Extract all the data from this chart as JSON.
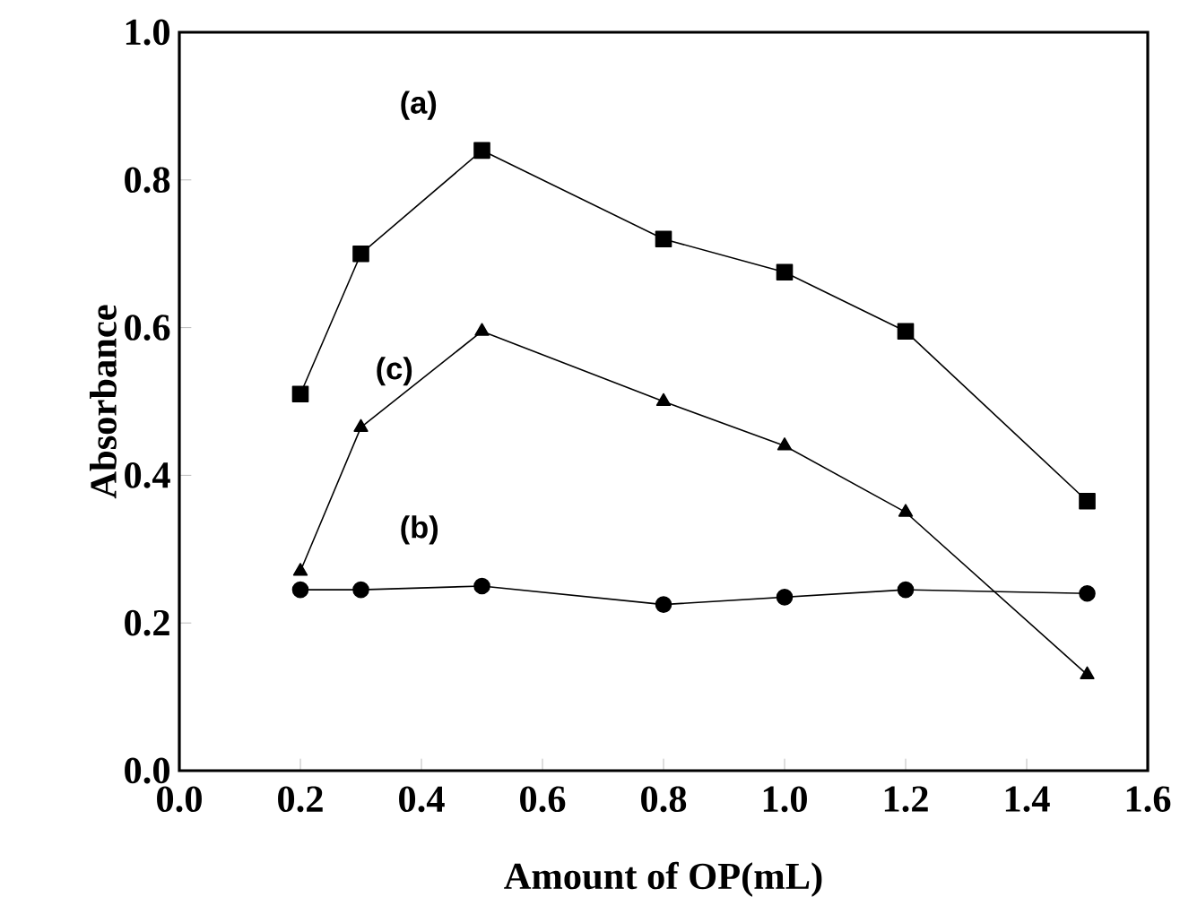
{
  "chart_data": {
    "type": "line",
    "xlabel": "Amount of OP(mL)",
    "ylabel": "Absorbance",
    "x": [
      0.2,
      0.3,
      0.5,
      0.8,
      1.0,
      1.2,
      1.5
    ],
    "series": [
      {
        "name": "(a)",
        "color": "#000000",
        "marker": "square",
        "values": [
          0.51,
          0.7,
          0.84,
          0.72,
          0.675,
          0.595,
          0.365
        ]
      },
      {
        "name": "(b)",
        "color": "#000000",
        "marker": "circle",
        "values": [
          0.245,
          0.245,
          0.25,
          0.225,
          0.235,
          0.245,
          0.24
        ]
      },
      {
        "name": "(c)",
        "color": "#000000",
        "marker": "triangle",
        "values": [
          0.27,
          0.465,
          0.595,
          0.5,
          0.44,
          0.35,
          0.13
        ]
      }
    ],
    "xlim": [
      0.0,
      1.6
    ],
    "xticks": [
      {
        "value": 0.0,
        "label": "0.0"
      },
      {
        "value": 0.2,
        "label": "0.2"
      },
      {
        "value": 0.4,
        "label": "0.4"
      },
      {
        "value": 0.6,
        "label": "0.6"
      },
      {
        "value": 0.8,
        "label": "0.8"
      },
      {
        "value": 1.0,
        "label": "1.0"
      },
      {
        "value": 1.2,
        "label": "1.2"
      },
      {
        "value": 1.4,
        "label": "1.4"
      },
      {
        "value": 1.6,
        "label": "1.6"
      }
    ],
    "ylim": [
      0.0,
      1.0
    ],
    "yticks": [
      {
        "value": 0.0,
        "label": "0.0"
      },
      {
        "value": 0.2,
        "label": "0.2"
      },
      {
        "value": 0.4,
        "label": "0.4"
      },
      {
        "value": 0.6,
        "label": "0.6"
      },
      {
        "value": 0.8,
        "label": "0.8"
      },
      {
        "value": 1.0,
        "label": "1.0"
      }
    ],
    "grid": false,
    "legend": false,
    "line_style": "solid"
  }
}
